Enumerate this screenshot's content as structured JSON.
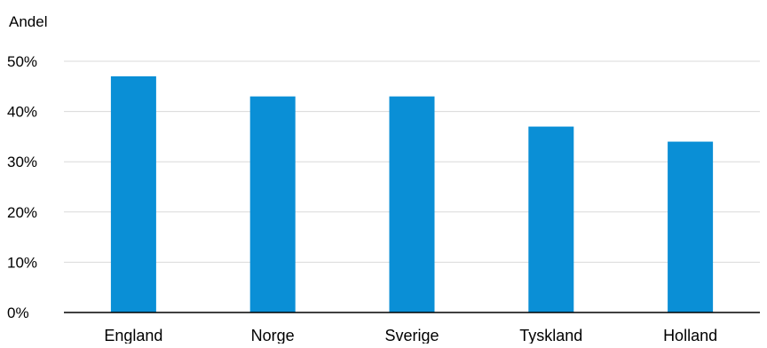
{
  "chart_data": {
    "type": "bar",
    "title": "",
    "xlabel": "",
    "ylabel": "Andel",
    "categories": [
      "England",
      "Norge",
      "Sverige",
      "Tyskland",
      "Holland"
    ],
    "values": [
      0.47,
      0.43,
      0.43,
      0.37,
      0.34
    ],
    "ylim": [
      0,
      0.5
    ],
    "yticks": [
      0,
      0.1,
      0.2,
      0.3,
      0.4,
      0.5
    ],
    "ytick_labels": [
      "0%",
      "10%",
      "20%",
      "30%",
      "40%",
      "50%"
    ],
    "grid": "horizontal",
    "legend": "none",
    "colors": {
      "bar": "#0a8fd6",
      "grid": "#d9d9d9",
      "axis": "#000000"
    }
  }
}
